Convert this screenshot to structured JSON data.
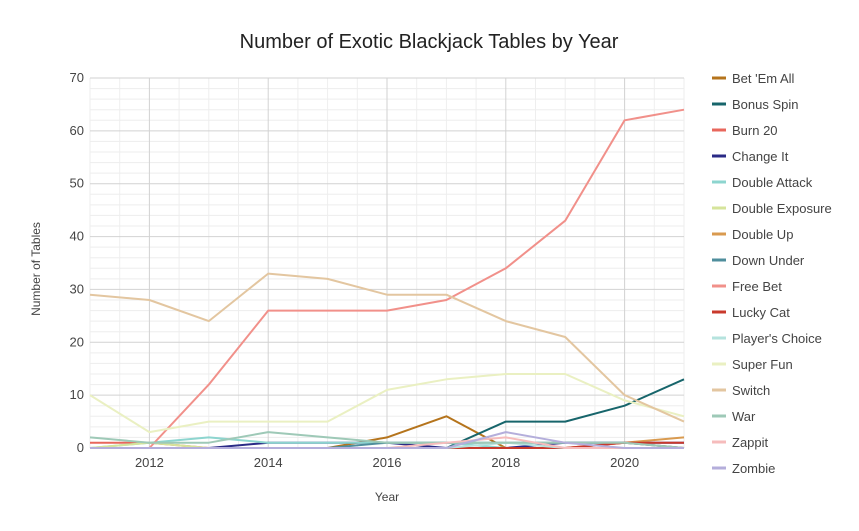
{
  "chart_data": {
    "type": "line",
    "title": "Number of Exotic Blackjack Tables by Year",
    "xlabel": "Year",
    "ylabel": "Number of Tables",
    "xlim": [
      2011,
      2021
    ],
    "ylim": [
      0,
      70
    ],
    "x_ticks": [
      "2012",
      "2014",
      "2016",
      "2018",
      "2020"
    ],
    "y_ticks": [
      "0",
      "10",
      "20",
      "30",
      "40",
      "50",
      "60",
      "70"
    ],
    "grid": true,
    "legend_position": "right",
    "x": [
      2011,
      2012,
      2013,
      2014,
      2015,
      2016,
      2017,
      2018,
      2019,
      2020,
      2021
    ],
    "series": [
      {
        "name": "Bet 'Em All",
        "color": "#b5741c",
        "values": [
          0,
          0,
          0,
          0,
          0,
          2,
          6,
          0,
          0,
          0,
          0
        ]
      },
      {
        "name": "Bonus Spin",
        "color": "#17656b",
        "values": [
          0,
          0,
          0,
          0,
          0,
          0,
          0,
          5,
          5,
          8,
          13
        ]
      },
      {
        "name": "Burn 20",
        "color": "#e8675c",
        "values": [
          1,
          1,
          0,
          0,
          0,
          0,
          0,
          0,
          0,
          1,
          0
        ]
      },
      {
        "name": "Change It",
        "color": "#2a2a86",
        "values": [
          0,
          0,
          0,
          1,
          1,
          1,
          0,
          0,
          1,
          1,
          1
        ]
      },
      {
        "name": "Double Attack",
        "color": "#8dd5cf",
        "values": [
          0,
          1,
          2,
          1,
          1,
          1,
          1,
          0,
          0,
          0,
          0
        ]
      },
      {
        "name": "Double Exposure",
        "color": "#d6e49b",
        "values": [
          0,
          1,
          0,
          0,
          0,
          0,
          0,
          0,
          0,
          0,
          0
        ]
      },
      {
        "name": "Double Up",
        "color": "#d99a4f",
        "values": [
          0,
          0,
          0,
          0,
          0,
          0,
          0,
          0,
          0,
          1,
          2
        ]
      },
      {
        "name": "Down Under",
        "color": "#4f8e9c",
        "values": [
          0,
          0,
          0,
          0,
          0,
          1,
          1,
          1,
          1,
          1,
          0
        ]
      },
      {
        "name": "Free Bet",
        "color": "#f1908a",
        "values": [
          0,
          0,
          12,
          26,
          26,
          26,
          28,
          34,
          43,
          62,
          64
        ]
      },
      {
        "name": "Lucky Cat",
        "color": "#c9392c",
        "values": [
          0,
          0,
          0,
          0,
          0,
          0,
          0,
          0,
          0,
          1,
          1
        ]
      },
      {
        "name": "Player's Choice",
        "color": "#b5e3de",
        "values": [
          0,
          0,
          0,
          0,
          0,
          0,
          0,
          1,
          0,
          0,
          0
        ]
      },
      {
        "name": "Super Fun",
        "color": "#eaf0c2",
        "values": [
          10,
          3,
          5,
          5,
          5,
          11,
          13,
          14,
          14,
          9,
          6
        ]
      },
      {
        "name": "Switch",
        "color": "#e3c6a0",
        "values": [
          29,
          28,
          24,
          33,
          32,
          29,
          29,
          24,
          21,
          10,
          5
        ]
      },
      {
        "name": "War",
        "color": "#9ec9b7",
        "values": [
          2,
          1,
          1,
          3,
          2,
          1,
          1,
          1,
          1,
          1,
          0
        ]
      },
      {
        "name": "Zappit",
        "color": "#f6bcbc",
        "values": [
          0,
          0,
          0,
          0,
          0,
          0,
          1,
          2,
          0,
          0,
          0
        ]
      },
      {
        "name": "Zombie",
        "color": "#b4aedb",
        "values": [
          0,
          0,
          0,
          0,
          0,
          0,
          0,
          3,
          1,
          0,
          0
        ]
      }
    ]
  }
}
